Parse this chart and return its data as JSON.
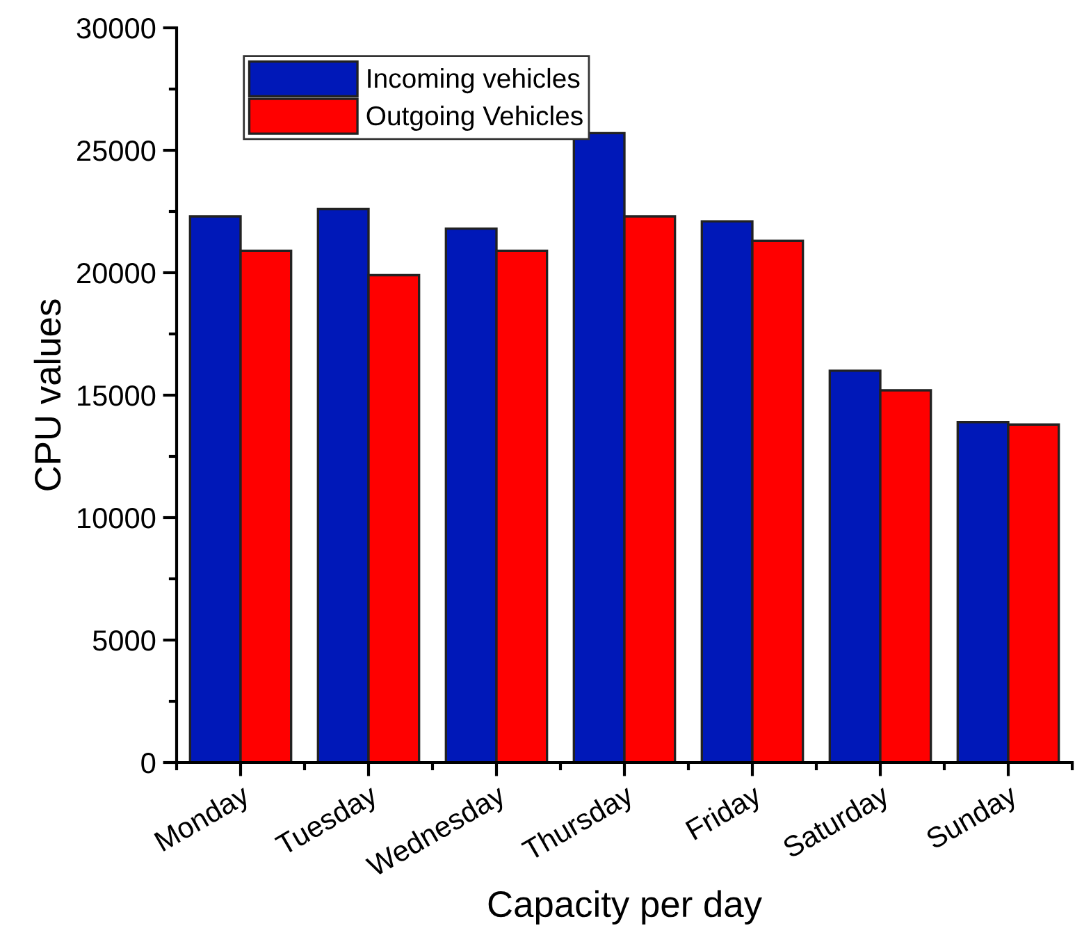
{
  "chart_data": {
    "type": "bar",
    "xlabel": "Capacity per day",
    "ylabel": "CPU values",
    "categories": [
      "Monday",
      "Tuesday",
      "Wednesday",
      "Thursday",
      "Friday",
      "Saturday",
      "Sunday"
    ],
    "series": [
      {
        "name": "Incoming vehicles",
        "color": "#0018b8",
        "values": [
          22300,
          22600,
          21800,
          25700,
          22100,
          16000,
          13900
        ]
      },
      {
        "name": "Outgoing Vehicles",
        "color": "#ff0000",
        "values": [
          20900,
          19900,
          20900,
          22300,
          21300,
          15200,
          13800
        ]
      }
    ],
    "ylim": [
      0,
      30000
    ],
    "yticks": [
      0,
      5000,
      10000,
      15000,
      20000,
      25000,
      30000
    ],
    "grid": false,
    "legend": "top left"
  }
}
